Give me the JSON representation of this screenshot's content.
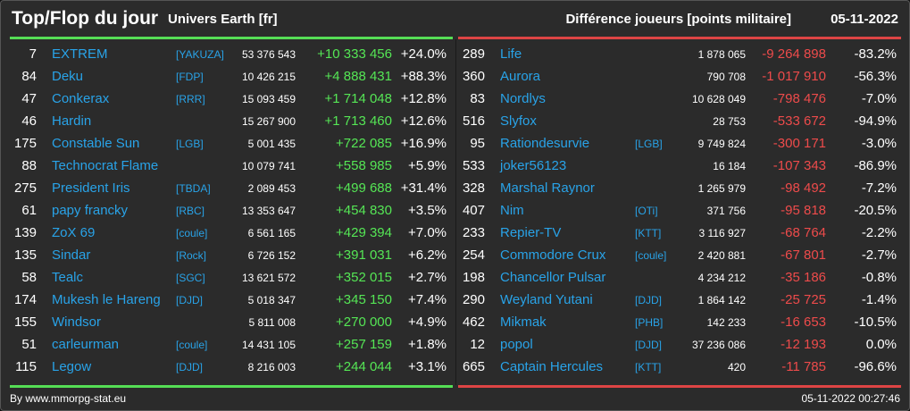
{
  "header": {
    "title": "Top/Flop du jour",
    "subtitle": "Univers Earth [fr]",
    "right_title": "Différence joueurs [points militaire]",
    "date": "05-11-2022"
  },
  "colors": {
    "top": "#55dd55",
    "flop": "#dd4444",
    "link": "#29a3e8"
  },
  "top": [
    {
      "rank": "7",
      "name": "EXTREM",
      "ally": "[YAKUZA]",
      "points": "53 376 543",
      "diff": "+10 333 456",
      "pct": "+24.0%"
    },
    {
      "rank": "84",
      "name": "Deku",
      "ally": "[FDP]",
      "points": "10 426 215",
      "diff": "+4 888 431",
      "pct": "+88.3%"
    },
    {
      "rank": "47",
      "name": "Conkerax",
      "ally": "[RRR]",
      "points": "15 093 459",
      "diff": "+1 714 048",
      "pct": "+12.8%"
    },
    {
      "rank": "46",
      "name": "Hardin",
      "ally": "",
      "points": "15 267 900",
      "diff": "+1 713 460",
      "pct": "+12.6%"
    },
    {
      "rank": "175",
      "name": "Constable Sun",
      "ally": "[LGB]",
      "points": "5 001 435",
      "diff": "+722 085",
      "pct": "+16.9%"
    },
    {
      "rank": "88",
      "name": "Technocrat Flame",
      "ally": "",
      "points": "10 079 741",
      "diff": "+558 985",
      "pct": "+5.9%"
    },
    {
      "rank": "275",
      "name": "President Iris",
      "ally": "[TBDA]",
      "points": "2 089 453",
      "diff": "+499 688",
      "pct": "+31.4%"
    },
    {
      "rank": "61",
      "name": "papy francky",
      "ally": "[RBC]",
      "points": "13 353 647",
      "diff": "+454 830",
      "pct": "+3.5%"
    },
    {
      "rank": "139",
      "name": "ZoX 69",
      "ally": "[coule]",
      "points": "6 561 165",
      "diff": "+429 394",
      "pct": "+7.0%"
    },
    {
      "rank": "135",
      "name": "Sindar",
      "ally": "[Rock]",
      "points": "6 726 152",
      "diff": "+391 031",
      "pct": "+6.2%"
    },
    {
      "rank": "58",
      "name": "Tealc",
      "ally": "[SGC]",
      "points": "13 621 572",
      "diff": "+352 015",
      "pct": "+2.7%"
    },
    {
      "rank": "174",
      "name": "Mukesh le Hareng",
      "ally": "[DJD]",
      "points": "5 018 347",
      "diff": "+345 150",
      "pct": "+7.4%"
    },
    {
      "rank": "155",
      "name": "Windsor",
      "ally": "",
      "points": "5 811 008",
      "diff": "+270 000",
      "pct": "+4.9%"
    },
    {
      "rank": "51",
      "name": "carleurman",
      "ally": "[coule]",
      "points": "14 431 105",
      "diff": "+257 159",
      "pct": "+1.8%"
    },
    {
      "rank": "115",
      "name": "Legow",
      "ally": "[DJD]",
      "points": "8 216 003",
      "diff": "+244 044",
      "pct": "+3.1%"
    }
  ],
  "flop": [
    {
      "rank": "289",
      "name": "Life",
      "ally": "",
      "points": "1 878 065",
      "diff": "-9 264 898",
      "pct": "-83.2%"
    },
    {
      "rank": "360",
      "name": "Aurora",
      "ally": "",
      "points": "790 708",
      "diff": "-1 017 910",
      "pct": "-56.3%"
    },
    {
      "rank": "83",
      "name": "Nordlys",
      "ally": "",
      "points": "10 628 049",
      "diff": "-798 476",
      "pct": "-7.0%"
    },
    {
      "rank": "516",
      "name": "Slyfox",
      "ally": "",
      "points": "28 753",
      "diff": "-533 672",
      "pct": "-94.9%"
    },
    {
      "rank": "95",
      "name": "Rationdesurvie",
      "ally": "[LGB]",
      "points": "9 749 824",
      "diff": "-300 171",
      "pct": "-3.0%"
    },
    {
      "rank": "533",
      "name": "joker56123",
      "ally": "",
      "points": "16 184",
      "diff": "-107 343",
      "pct": "-86.9%"
    },
    {
      "rank": "328",
      "name": "Marshal Raynor",
      "ally": "",
      "points": "1 265 979",
      "diff": "-98 492",
      "pct": "-7.2%"
    },
    {
      "rank": "407",
      "name": "Nim",
      "ally": "[OTi]",
      "points": "371 756",
      "diff": "-95 818",
      "pct": "-20.5%"
    },
    {
      "rank": "233",
      "name": "Repier-TV",
      "ally": "[KTT]",
      "points": "3 116 927",
      "diff": "-68 764",
      "pct": "-2.2%"
    },
    {
      "rank": "254",
      "name": "Commodore Crux",
      "ally": "[coule]",
      "points": "2 420 881",
      "diff": "-67 801",
      "pct": "-2.7%"
    },
    {
      "rank": "198",
      "name": "Chancellor Pulsar",
      "ally": "",
      "points": "4 234 212",
      "diff": "-35 186",
      "pct": "-0.8%"
    },
    {
      "rank": "290",
      "name": "Weyland Yutani",
      "ally": "[DJD]",
      "points": "1 864 142",
      "diff": "-25 725",
      "pct": "-1.4%"
    },
    {
      "rank": "462",
      "name": "Mikmak",
      "ally": "[PHB]",
      "points": "142 233",
      "diff": "-16 653",
      "pct": "-10.5%"
    },
    {
      "rank": "12",
      "name": "popol",
      "ally": "[DJD]",
      "points": "37 236 086",
      "diff": "-12 193",
      "pct": "0.0%"
    },
    {
      "rank": "665",
      "name": "Captain Hercules",
      "ally": "[KTT]",
      "points": "420",
      "diff": "-11 785",
      "pct": "-96.6%"
    }
  ],
  "footer": {
    "credit": "By www.mmorpg-stat.eu",
    "timestamp": "05-11-2022 00:27:46"
  }
}
